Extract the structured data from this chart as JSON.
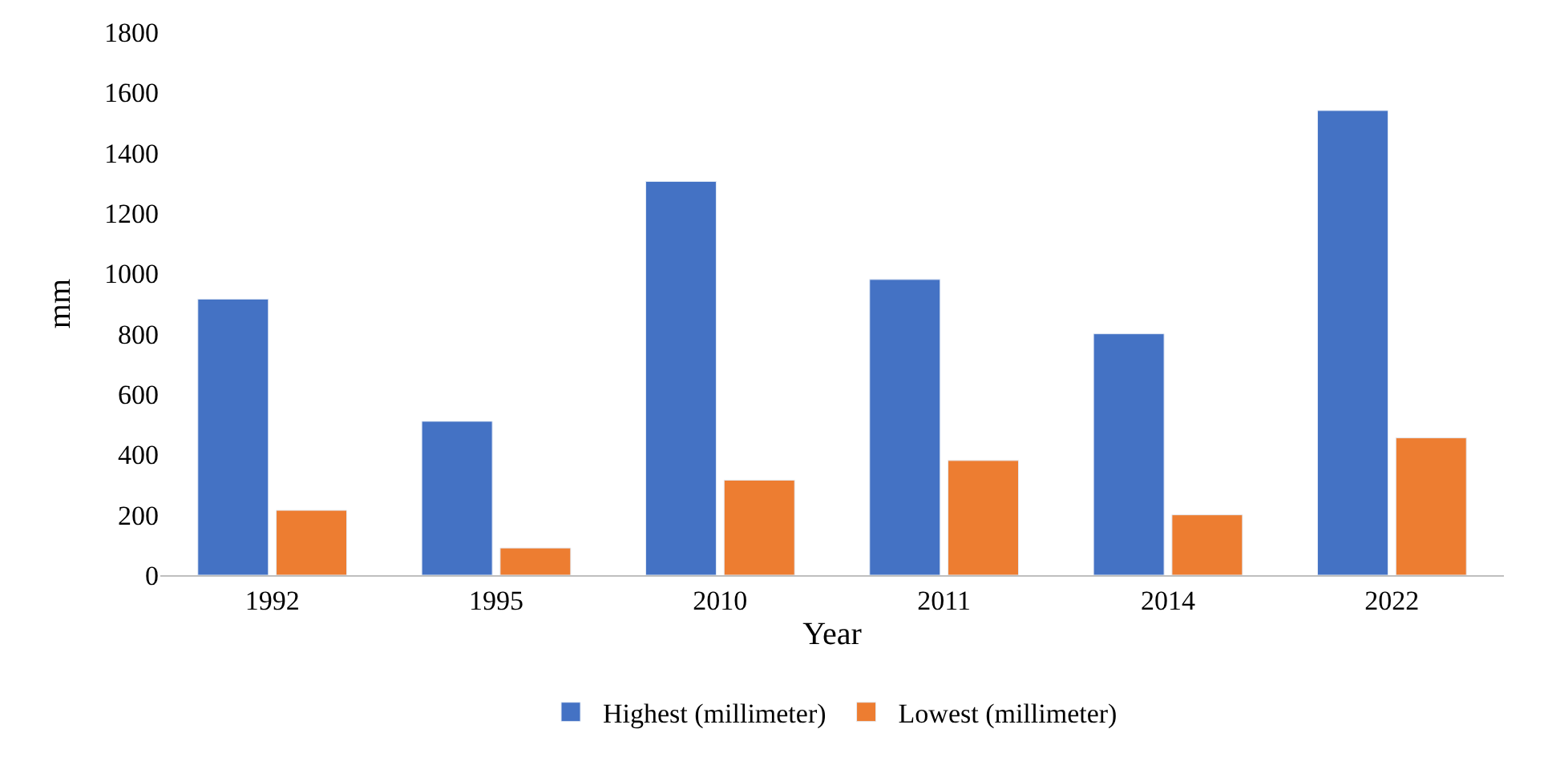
{
  "chart_data": {
    "type": "bar",
    "xlabel": "Year",
    "ylabel": "mm",
    "categories": [
      "1992",
      "1995",
      "2010",
      "2011",
      "2014",
      "2022"
    ],
    "series": [
      {
        "name": "Highest (millimeter)",
        "color": "#4472c4",
        "values": [
          915,
          510,
          1305,
          980,
          800,
          1540
        ]
      },
      {
        "name": "Lowest (millimeter)",
        "color": "#ed7d31",
        "values": [
          215,
          90,
          315,
          380,
          200,
          455
        ]
      }
    ],
    "ylim": [
      0,
      1800
    ],
    "yticks": [
      0,
      200,
      400,
      600,
      800,
      1000,
      1200,
      1400,
      1600,
      1800
    ],
    "grid": false,
    "legend": "bottom"
  }
}
